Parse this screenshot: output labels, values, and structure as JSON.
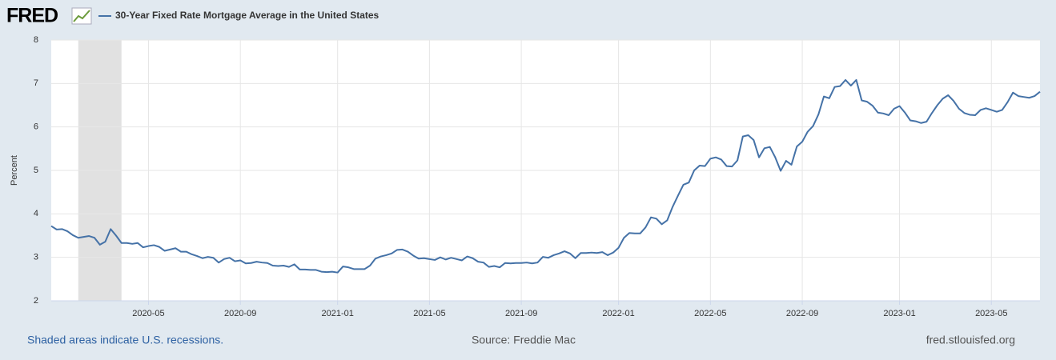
{
  "header": {
    "logo": "FRED"
  },
  "chart_data": {
    "type": "line",
    "y_label": "Percent",
    "x": [
      "2020-01",
      "2020-01",
      "2020-01",
      "2020-01",
      "2020-01",
      "2020-02",
      "2020-02",
      "2020-02",
      "2020-02",
      "2020-03",
      "2020-03",
      "2020-03",
      "2020-03",
      "2020-04",
      "2020-04",
      "2020-04",
      "2020-04",
      "2020-04",
      "2020-05",
      "2020-05",
      "2020-05",
      "2020-05",
      "2020-06",
      "2020-06",
      "2020-06",
      "2020-06",
      "2020-07",
      "2020-07",
      "2020-07",
      "2020-07",
      "2020-07",
      "2020-08",
      "2020-08",
      "2020-08",
      "2020-08",
      "2020-09",
      "2020-09",
      "2020-09",
      "2020-09",
      "2020-10",
      "2020-10",
      "2020-10",
      "2020-10",
      "2020-10",
      "2020-11",
      "2020-11",
      "2020-11",
      "2020-11",
      "2020-12",
      "2020-12",
      "2020-12",
      "2020-12",
      "2020-12",
      "2021-01",
      "2021-01",
      "2021-01",
      "2021-01",
      "2021-02",
      "2021-02",
      "2021-02",
      "2021-02",
      "2021-03",
      "2021-03",
      "2021-03",
      "2021-03",
      "2021-04",
      "2021-04",
      "2021-04",
      "2021-04",
      "2021-04",
      "2021-05",
      "2021-05",
      "2021-05",
      "2021-05",
      "2021-06",
      "2021-06",
      "2021-06",
      "2021-06",
      "2021-07",
      "2021-07",
      "2021-07",
      "2021-07",
      "2021-07",
      "2021-08",
      "2021-08",
      "2021-08",
      "2021-08",
      "2021-09",
      "2021-09",
      "2021-09",
      "2021-09",
      "2021-09",
      "2021-10",
      "2021-10",
      "2021-10",
      "2021-10",
      "2021-11",
      "2021-11",
      "2021-11",
      "2021-11",
      "2021-12",
      "2021-12",
      "2021-12",
      "2021-12",
      "2021-12",
      "2022-01",
      "2022-01",
      "2022-01",
      "2022-01",
      "2022-02",
      "2022-02",
      "2022-02",
      "2022-02",
      "2022-03",
      "2022-03",
      "2022-03",
      "2022-03",
      "2022-03",
      "2022-04",
      "2022-04",
      "2022-04",
      "2022-04",
      "2022-05",
      "2022-05",
      "2022-05",
      "2022-05",
      "2022-06",
      "2022-06",
      "2022-06",
      "2022-06",
      "2022-06",
      "2022-07",
      "2022-07",
      "2022-07",
      "2022-07",
      "2022-08",
      "2022-08",
      "2022-08",
      "2022-08",
      "2022-09",
      "2022-09",
      "2022-09",
      "2022-09",
      "2022-09",
      "2022-10",
      "2022-10",
      "2022-10",
      "2022-10",
      "2022-11",
      "2022-11",
      "2022-11",
      "2022-11",
      "2022-12",
      "2022-12",
      "2022-12",
      "2022-12",
      "2022-12",
      "2023-01",
      "2023-01",
      "2023-01",
      "2023-01",
      "2023-02",
      "2023-02",
      "2023-02",
      "2023-02",
      "2023-03",
      "2023-03",
      "2023-03",
      "2023-03",
      "2023-03",
      "2023-04",
      "2023-04",
      "2023-04",
      "2023-04",
      "2023-05",
      "2023-05",
      "2023-05",
      "2023-05",
      "2023-06",
      "2023-06",
      "2023-06",
      "2023-06",
      "2023-06",
      "2023-07"
    ],
    "series": [
      {
        "name": "30-Year Fixed Rate Mortgage Average in the United States",
        "color": "#4572a7",
        "values": [
          3.72,
          3.64,
          3.65,
          3.6,
          3.51,
          3.45,
          3.47,
          3.49,
          3.45,
          3.29,
          3.36,
          3.65,
          3.5,
          3.33,
          3.33,
          3.31,
          3.33,
          3.23,
          3.26,
          3.28,
          3.24,
          3.15,
          3.18,
          3.21,
          3.13,
          3.13,
          3.07,
          3.03,
          2.98,
          3.01,
          2.99,
          2.88,
          2.96,
          2.99,
          2.91,
          2.93,
          2.86,
          2.87,
          2.9,
          2.88,
          2.87,
          2.81,
          2.8,
          2.81,
          2.78,
          2.84,
          2.72,
          2.72,
          2.71,
          2.71,
          2.67,
          2.66,
          2.67,
          2.65,
          2.79,
          2.77,
          2.73,
          2.73,
          2.73,
          2.81,
          2.97,
          3.02,
          3.05,
          3.09,
          3.17,
          3.18,
          3.13,
          3.04,
          2.97,
          2.98,
          2.96,
          2.94,
          3.0,
          2.95,
          2.99,
          2.96,
          2.93,
          3.02,
          2.98,
          2.9,
          2.88,
          2.78,
          2.8,
          2.77,
          2.87,
          2.86,
          2.87,
          2.87,
          2.88,
          2.86,
          2.88,
          3.01,
          2.99,
          3.05,
          3.09,
          3.14,
          3.09,
          2.98,
          3.1,
          3.1,
          3.11,
          3.1,
          3.12,
          3.05,
          3.11,
          3.22,
          3.45,
          3.56,
          3.55,
          3.55,
          3.69,
          3.92,
          3.89,
          3.76,
          3.85,
          4.16,
          4.42,
          4.67,
          4.72,
          5.0,
          5.11,
          5.1,
          5.27,
          5.3,
          5.25,
          5.1,
          5.09,
          5.23,
          5.78,
          5.81,
          5.7,
          5.3,
          5.51,
          5.54,
          5.3,
          4.99,
          5.22,
          5.13,
          5.55,
          5.66,
          5.89,
          6.02,
          6.29,
          6.7,
          6.66,
          6.92,
          6.94,
          7.08,
          6.95,
          7.08,
          6.61,
          6.58,
          6.49,
          6.33,
          6.31,
          6.27,
          6.42,
          6.48,
          6.33,
          6.15,
          6.13,
          6.09,
          6.12,
          6.32,
          6.5,
          6.65,
          6.73,
          6.6,
          6.42,
          6.32,
          6.28,
          6.27,
          6.39,
          6.43,
          6.39,
          6.35,
          6.39,
          6.57,
          6.79,
          6.71,
          6.69,
          6.67,
          6.71,
          6.81
        ]
      }
    ],
    "xticks": [
      "2020-05",
      "2020-09",
      "2021-01",
      "2021-05",
      "2021-09",
      "2022-01",
      "2022-05",
      "2022-09",
      "2023-01",
      "2023-05"
    ],
    "ylim": [
      2,
      8
    ],
    "yticks": [
      2,
      3,
      4,
      5,
      6,
      7,
      8
    ],
    "grid": true,
    "recessions": [
      {
        "start": "2020-02",
        "end": "2020-04"
      }
    ],
    "recession_note": "Shaded areas indicate U.S. recessions.",
    "source": "Source: Freddie Mac"
  },
  "footer": {
    "site": "fred.stlouisfed.org"
  }
}
